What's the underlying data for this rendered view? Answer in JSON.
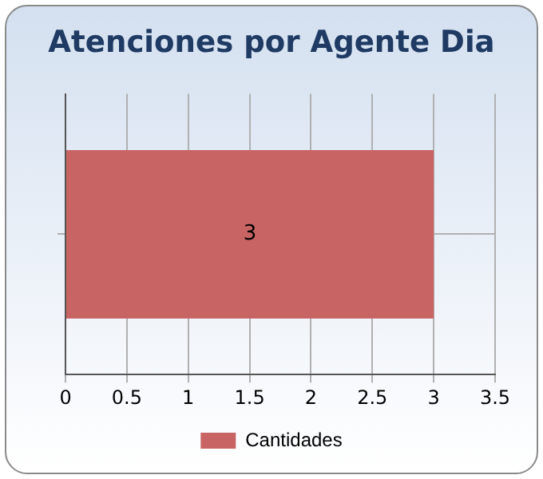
{
  "chart_data": {
    "type": "bar",
    "orientation": "horizontal",
    "title": "Atenciones por Agente Dia",
    "categories": [
      null
    ],
    "series": [
      {
        "name": "Cantidades",
        "color": "#c86464",
        "values": [
          3
        ]
      }
    ],
    "xlim": [
      0,
      3.5
    ],
    "xticks": [
      0,
      0.5,
      1,
      1.5,
      2,
      2.5,
      3,
      3.5
    ],
    "grid": true,
    "legend": "bottom",
    "data_labels": true
  }
}
